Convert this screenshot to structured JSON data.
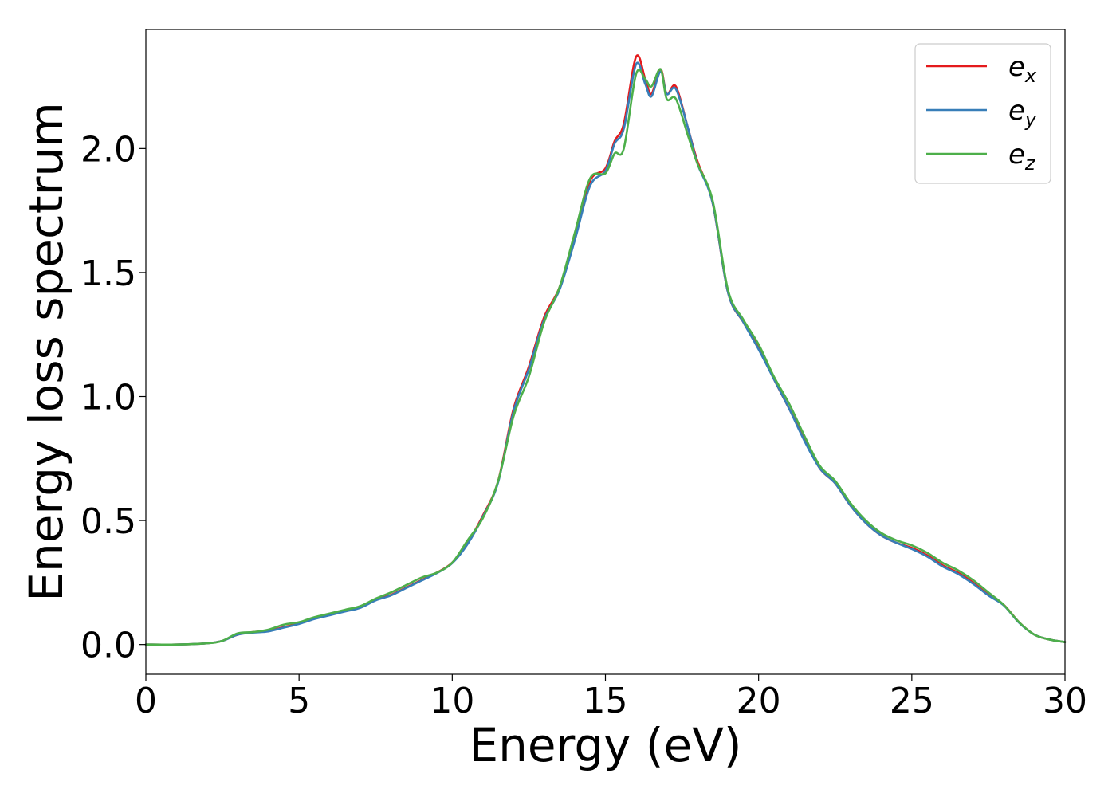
{
  "chart_data": {
    "type": "line",
    "title": "",
    "xlabel": "Energy (eV)",
    "ylabel": "Energy loss spectrum",
    "xlim": [
      0,
      30
    ],
    "ylim": [
      -0.12,
      2.48
    ],
    "xticks": [
      0,
      5,
      10,
      15,
      20,
      25,
      30
    ],
    "xtick_labels": [
      "0",
      "5",
      "10",
      "15",
      "20",
      "25",
      "30"
    ],
    "yticks": [
      0.0,
      0.5,
      1.0,
      1.5,
      2.0
    ],
    "ytick_labels": [
      "0.0",
      "0.5",
      "1.0",
      "1.5",
      "2.0"
    ],
    "grid": false,
    "legend_position": "top-right",
    "series": [
      {
        "name": "e_x",
        "legend_base": "e",
        "legend_sub": "x",
        "color": "#e41a1c",
        "x": [
          0,
          1,
          2,
          2.5,
          3,
          3.5,
          4,
          4.5,
          5,
          5.5,
          6,
          6.5,
          7,
          7.5,
          8,
          8.5,
          9,
          9.5,
          10,
          10.5,
          11,
          11.5,
          12,
          12.5,
          13,
          13.5,
          14,
          14.5,
          15,
          15.3,
          15.6,
          16,
          16.3,
          16.5,
          16.8,
          17,
          17.3,
          17.7,
          18,
          18.5,
          19,
          19.5,
          20,
          20.5,
          21,
          21.5,
          22,
          22.5,
          23,
          23.5,
          24,
          24.5,
          25,
          25.5,
          26,
          26.5,
          27,
          27.5,
          28,
          28.5,
          29,
          29.5,
          30
        ],
        "y": [
          0.0,
          0.0,
          0.005,
          0.015,
          0.04,
          0.05,
          0.055,
          0.07,
          0.085,
          0.105,
          0.12,
          0.135,
          0.15,
          0.18,
          0.2,
          0.23,
          0.26,
          0.29,
          0.33,
          0.41,
          0.52,
          0.66,
          0.95,
          1.12,
          1.32,
          1.44,
          1.65,
          1.87,
          1.92,
          2.03,
          2.1,
          2.37,
          2.28,
          2.22,
          2.32,
          2.22,
          2.25,
          2.08,
          1.95,
          1.78,
          1.42,
          1.3,
          1.2,
          1.07,
          0.95,
          0.83,
          0.71,
          0.65,
          0.56,
          0.49,
          0.44,
          0.41,
          0.39,
          0.36,
          0.32,
          0.29,
          0.25,
          0.2,
          0.16,
          0.09,
          0.04,
          0.02,
          0.01
        ]
      },
      {
        "name": "e_y",
        "legend_base": "e",
        "legend_sub": "y",
        "color": "#377eb8",
        "x": [
          0,
          1,
          2,
          2.5,
          3,
          3.5,
          4,
          4.5,
          5,
          5.5,
          6,
          6.5,
          7,
          7.5,
          8,
          8.5,
          9,
          9.5,
          10,
          10.5,
          11,
          11.5,
          12,
          12.5,
          13,
          13.5,
          14,
          14.5,
          15,
          15.3,
          15.6,
          16,
          16.3,
          16.5,
          16.8,
          17,
          17.3,
          17.7,
          18,
          18.5,
          19,
          19.5,
          20,
          20.5,
          21,
          21.5,
          22,
          22.5,
          23,
          23.5,
          24,
          24.5,
          25,
          25.5,
          26,
          26.5,
          27,
          27.5,
          28,
          28.5,
          29,
          29.5,
          30
        ],
        "y": [
          0.0,
          0.0,
          0.005,
          0.015,
          0.04,
          0.048,
          0.053,
          0.068,
          0.083,
          0.103,
          0.118,
          0.133,
          0.148,
          0.178,
          0.198,
          0.228,
          0.258,
          0.288,
          0.328,
          0.405,
          0.515,
          0.655,
          0.94,
          1.11,
          1.31,
          1.43,
          1.63,
          1.85,
          1.91,
          2.02,
          2.08,
          2.34,
          2.26,
          2.21,
          2.31,
          2.22,
          2.24,
          2.08,
          1.94,
          1.78,
          1.42,
          1.3,
          1.19,
          1.07,
          0.95,
          0.82,
          0.71,
          0.65,
          0.56,
          0.49,
          0.44,
          0.41,
          0.385,
          0.355,
          0.315,
          0.285,
          0.245,
          0.198,
          0.158,
          0.088,
          0.04,
          0.02,
          0.01
        ]
      },
      {
        "name": "e_z",
        "legend_base": "e",
        "legend_sub": "z",
        "color": "#4daf4a",
        "x": [
          0,
          1,
          2,
          2.5,
          3,
          3.5,
          4,
          4.5,
          5,
          5.5,
          6,
          6.5,
          7,
          7.5,
          8,
          8.5,
          9,
          9.5,
          10,
          10.5,
          11,
          11.5,
          12,
          12.5,
          13,
          13.5,
          14,
          14.5,
          15,
          15.3,
          15.6,
          16,
          16.3,
          16.5,
          16.8,
          17,
          17.3,
          17.7,
          18,
          18.5,
          19,
          19.5,
          20,
          20.5,
          21,
          21.5,
          22,
          22.5,
          23,
          23.5,
          24,
          24.5,
          25,
          25.5,
          26,
          26.5,
          27,
          27.5,
          28,
          28.5,
          29,
          29.5,
          30
        ],
        "y": [
          0.0,
          0.0,
          0.005,
          0.015,
          0.045,
          0.05,
          0.06,
          0.08,
          0.09,
          0.11,
          0.125,
          0.14,
          0.155,
          0.185,
          0.21,
          0.24,
          0.27,
          0.29,
          0.33,
          0.42,
          0.51,
          0.66,
          0.92,
          1.08,
          1.3,
          1.44,
          1.66,
          1.88,
          1.9,
          1.98,
          2.0,
          2.3,
          2.28,
          2.25,
          2.32,
          2.2,
          2.2,
          2.05,
          1.94,
          1.79,
          1.43,
          1.31,
          1.21,
          1.08,
          0.97,
          0.84,
          0.72,
          0.66,
          0.57,
          0.5,
          0.45,
          0.42,
          0.4,
          0.37,
          0.33,
          0.3,
          0.26,
          0.21,
          0.16,
          0.09,
          0.04,
          0.02,
          0.01
        ]
      }
    ]
  }
}
